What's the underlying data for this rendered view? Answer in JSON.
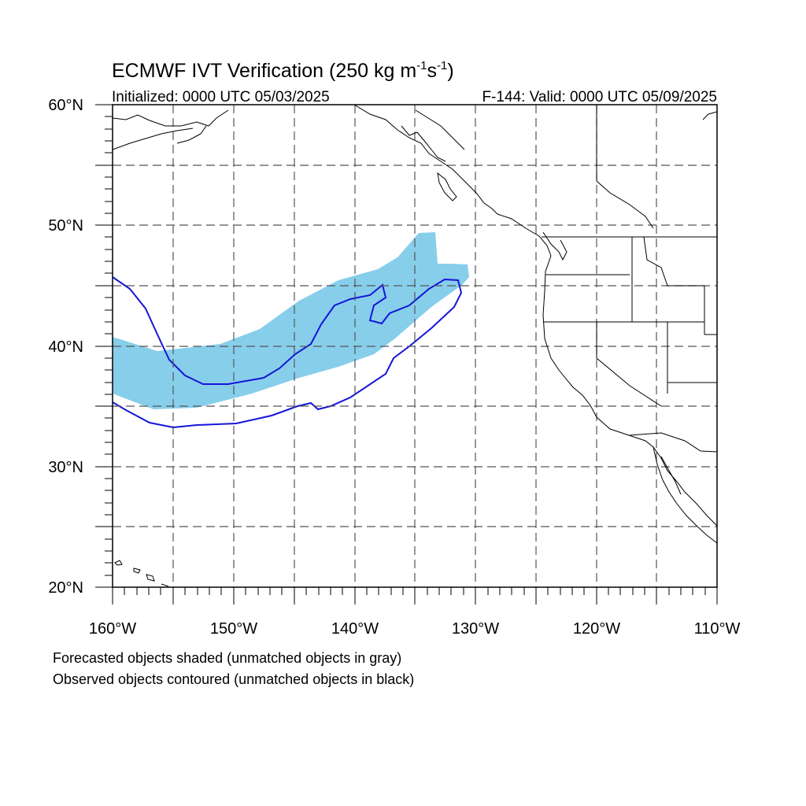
{
  "title": {
    "main": "ECMWF IVT Verification (250 kg m",
    "sup1": "-1",
    "mid": "s",
    "sup2": "-1",
    "close": ")"
  },
  "initialized": "Initialized: 0000 UTC 05/03/2025",
  "valid": "F-144: Valid: 0000 UTC 05/09/2025",
  "map": {
    "lon_range": [
      -160,
      -110
    ],
    "lat_range": [
      20,
      60
    ],
    "grid_lon_step": 5,
    "grid_lat_step": 5,
    "lon_labels": [
      "160°W",
      "150°W",
      "140°W",
      "130°W",
      "120°W",
      "110°W"
    ],
    "lat_labels": [
      "20°N",
      "30°N",
      "40°N",
      "50°N",
      "60°N"
    ],
    "colors": {
      "forecast_fill": "#87CEEB",
      "observed_contour": "#1515D8",
      "coastline": "#000000",
      "grid": "#555555"
    }
  },
  "legend": {
    "line1": "Forecasted objects shaded (unmatched objects in gray)",
    "line2": "Observed objects contoured (unmatched objects in black)"
  }
}
